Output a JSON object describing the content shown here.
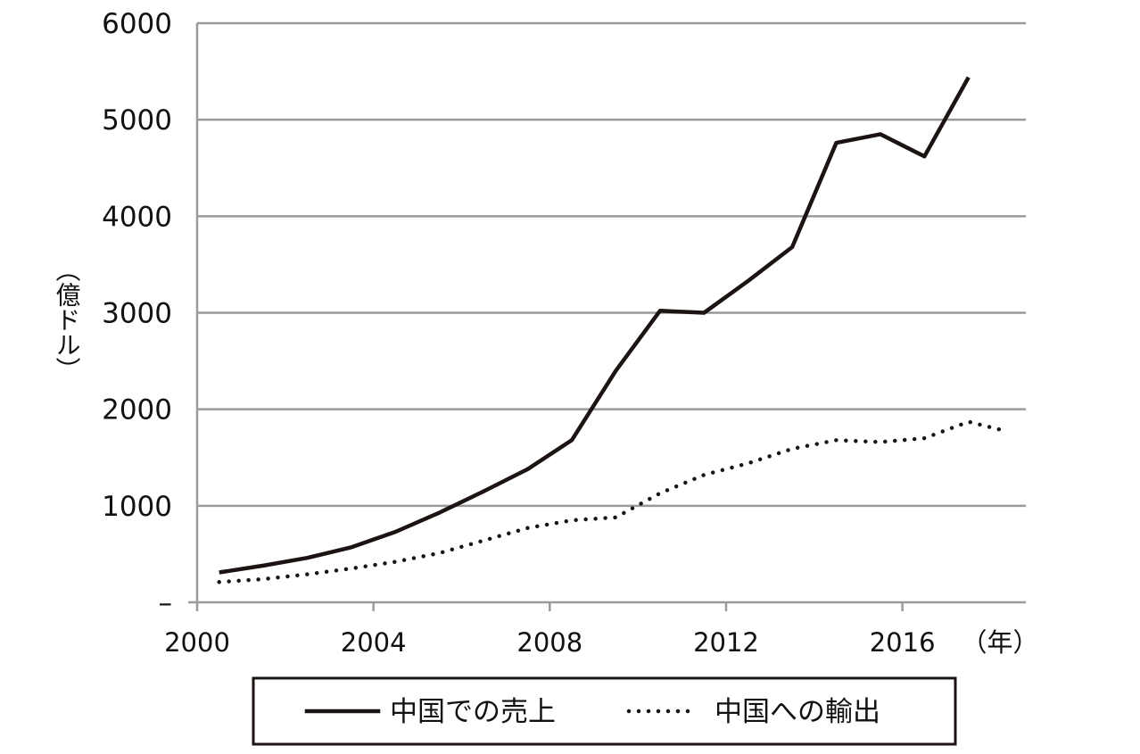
{
  "chart_data": {
    "type": "line",
    "title": "",
    "xlabel": "（年）",
    "ylabel": "（億ドル）",
    "ylim": [
      0,
      6000
    ],
    "xlim": [
      2000,
      2018.8
    ],
    "y_ticks": [
      {
        "value": 0,
        "label": "–"
      },
      {
        "value": 1000,
        "label": "1000"
      },
      {
        "value": 2000,
        "label": "2000"
      },
      {
        "value": 3000,
        "label": "3000"
      },
      {
        "value": 4000,
        "label": "4000"
      },
      {
        "value": 5000,
        "label": "5000"
      },
      {
        "value": 6000,
        "label": "6000"
      }
    ],
    "x_ticks": [
      {
        "value": 2000,
        "label": "2000"
      },
      {
        "value": 2004,
        "label": "2004"
      },
      {
        "value": 2008,
        "label": "2008"
      },
      {
        "value": 2012,
        "label": "2012"
      },
      {
        "value": 2016,
        "label": "2016"
      }
    ],
    "grid": "horizontal",
    "legend_position": "bottom",
    "series": [
      {
        "name": "中国での売上",
        "style": "solid",
        "color": "#1c1412",
        "points": [
          {
            "x": 2000.5,
            "y": 310
          },
          {
            "x": 2001.5,
            "y": 380
          },
          {
            "x": 2002.5,
            "y": 460
          },
          {
            "x": 2003.5,
            "y": 570
          },
          {
            "x": 2004.5,
            "y": 730
          },
          {
            "x": 2005.5,
            "y": 930
          },
          {
            "x": 2006.5,
            "y": 1150
          },
          {
            "x": 2007.5,
            "y": 1380
          },
          {
            "x": 2008.5,
            "y": 1680
          },
          {
            "x": 2009.5,
            "y": 2400
          },
          {
            "x": 2010.5,
            "y": 3020
          },
          {
            "x": 2011.5,
            "y": 3000
          },
          {
            "x": 2012.5,
            "y": 3330
          },
          {
            "x": 2013.5,
            "y": 3680
          },
          {
            "x": 2014.5,
            "y": 4760
          },
          {
            "x": 2015.5,
            "y": 4850
          },
          {
            "x": 2016.5,
            "y": 4620
          },
          {
            "x": 2017.5,
            "y": 5440
          }
        ]
      },
      {
        "name": "中国への輸出",
        "style": "dotted",
        "color": "#1c1412",
        "points": [
          {
            "x": 2000.5,
            "y": 210
          },
          {
            "x": 2001.5,
            "y": 240
          },
          {
            "x": 2002.5,
            "y": 290
          },
          {
            "x": 2003.5,
            "y": 350
          },
          {
            "x": 2004.5,
            "y": 420
          },
          {
            "x": 2005.5,
            "y": 510
          },
          {
            "x": 2006.5,
            "y": 640
          },
          {
            "x": 2007.5,
            "y": 770
          },
          {
            "x": 2008.5,
            "y": 850
          },
          {
            "x": 2009.5,
            "y": 880
          },
          {
            "x": 2010.5,
            "y": 1130
          },
          {
            "x": 2011.5,
            "y": 1320
          },
          {
            "x": 2012.5,
            "y": 1440
          },
          {
            "x": 2013.5,
            "y": 1590
          },
          {
            "x": 2014.5,
            "y": 1680
          },
          {
            "x": 2015.5,
            "y": 1660
          },
          {
            "x": 2016.5,
            "y": 1700
          },
          {
            "x": 2017.5,
            "y": 1870
          },
          {
            "x": 2018.3,
            "y": 1780
          }
        ]
      }
    ]
  }
}
